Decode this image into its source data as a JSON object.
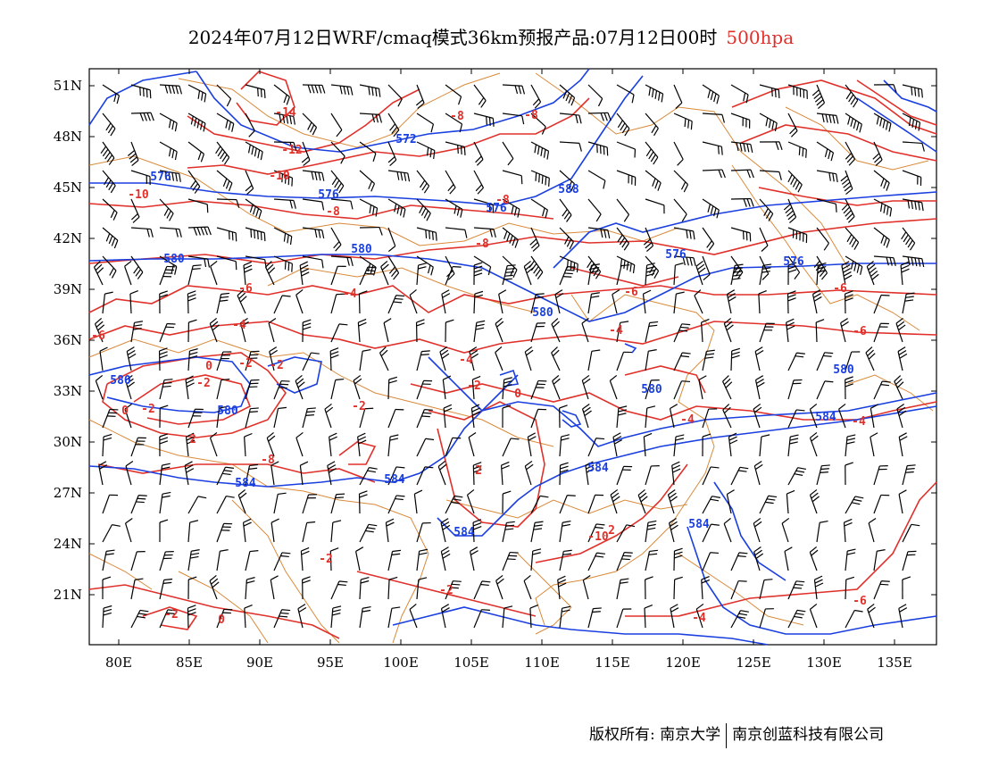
{
  "title": {
    "main": "2024年07月12日WRF/cmaq模式36km预报产品:07月12日00时",
    "level": "500hpa"
  },
  "map": {
    "lon_range": [
      78,
      138
    ],
    "lat_range": [
      18,
      52
    ],
    "lat_ticks": [
      "51N",
      "48N",
      "45N",
      "42N",
      "39N",
      "36N",
      "33N",
      "30N",
      "27N",
      "24N",
      "21N"
    ],
    "lon_ticks": [
      "80E",
      "85E",
      "90E",
      "95E",
      "100E",
      "105E",
      "110E",
      "115E",
      "120E",
      "125E",
      "130E",
      "135E"
    ],
    "colors": {
      "height_contour": "#1a3fe0",
      "temperature_contour": "#e0302a",
      "coastline_border": "#d98a3a",
      "wind_barb": "#000000"
    },
    "height_labels": [
      "572",
      "576",
      "576",
      "576",
      "580",
      "580",
      "580",
      "580",
      "580",
      "580",
      "580",
      "584",
      "584",
      "584",
      "584",
      "584",
      "584",
      "588",
      "576",
      "576"
    ],
    "temp_labels": [
      "-14",
      "-12",
      "-10",
      "-10",
      "-8",
      "-8",
      "-8",
      "-8",
      "-8",
      "-6",
      "-6",
      "-6",
      "-6",
      "-6",
      "-4",
      "-4",
      "-4",
      "-4",
      "-4",
      "-4",
      "-4",
      "-2",
      "-2",
      "-2",
      "-2",
      "-2",
      "-2",
      "-2",
      "-2",
      "-2",
      "0",
      "0",
      "0",
      "0",
      "2",
      "2",
      "2",
      "-8",
      "-10",
      "-6"
    ]
  },
  "footer": {
    "left": "版权所有: 南京大学",
    "right": "南京创蓝科技有限公司"
  }
}
